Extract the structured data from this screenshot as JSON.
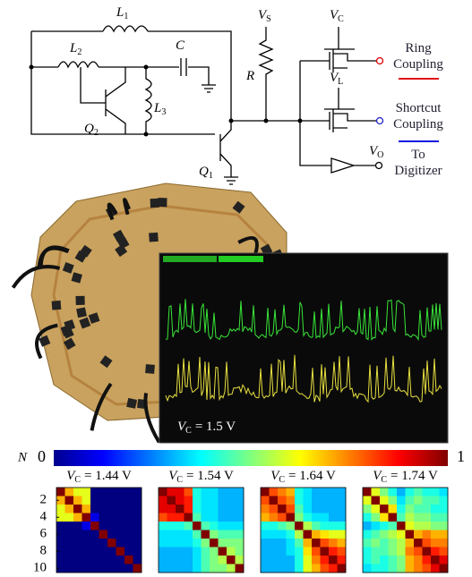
{
  "circuit": {
    "L1": {
      "symbol": "L",
      "subscript": "1"
    },
    "L2": {
      "symbol": "L",
      "subscript": "2"
    },
    "C": {
      "symbol": "C",
      "subscript": ""
    },
    "L3": {
      "symbol": "L",
      "subscript": "3"
    },
    "Q2": {
      "symbol": "Q",
      "subscript": "2"
    },
    "Q1": {
      "symbol": "Q",
      "subscript": "1"
    },
    "VS": {
      "symbol": "V",
      "subscript": "S"
    },
    "R": {
      "symbol": "R",
      "subscript": ""
    },
    "VC": {
      "symbol": "V",
      "subscript": "C"
    },
    "VL": {
      "symbol": "V",
      "subscript": "L"
    },
    "VO": {
      "symbol": "V",
      "subscript": "O"
    },
    "ring": [
      "Ring",
      "Coupling"
    ],
    "shortcut": [
      "Shortcut",
      "Coupling"
    ],
    "digitizer": [
      "To",
      "Digitizer"
    ]
  },
  "oscilloscope": {
    "label": {
      "symbol": "V",
      "subscript": "C",
      "rest": "= 1.5 V"
    }
  },
  "colorbar": {
    "label": "N",
    "ticks": [
      0,
      1
    ]
  },
  "heatmap_axis": {
    "yticks": [
      2,
      4,
      6,
      8,
      10
    ]
  },
  "heatmaps": [
    {
      "title": {
        "symbol": "V",
        "subscript": "C",
        "rest": "= 1.44 V"
      },
      "values": [
        [
          1,
          0.7,
          0.6,
          0.6,
          0,
          0,
          0,
          0,
          0,
          0
        ],
        [
          0.7,
          1,
          0.7,
          0.6,
          0,
          0,
          0,
          0,
          0,
          0
        ],
        [
          0.6,
          0.7,
          1,
          0.7,
          0,
          0,
          0,
          0,
          0,
          0
        ],
        [
          0.6,
          0.6,
          0.7,
          1,
          0.1,
          0,
          0,
          0,
          0,
          0
        ],
        [
          0,
          0,
          0,
          0.1,
          1,
          0,
          0,
          0,
          0,
          0
        ],
        [
          0,
          0,
          0,
          0,
          0,
          1,
          0,
          0,
          0,
          0
        ],
        [
          0,
          0,
          0,
          0,
          0,
          0,
          1,
          0,
          0,
          0
        ],
        [
          0,
          0,
          0,
          0,
          0,
          0,
          0,
          1,
          0,
          0
        ],
        [
          0,
          0,
          0,
          0,
          0,
          0,
          0,
          0,
          1,
          0
        ],
        [
          0,
          0,
          0,
          0,
          0,
          0,
          0,
          0,
          0,
          1
        ]
      ]
    },
    {
      "title": {
        "symbol": "V",
        "subscript": "C",
        "rest": "= 1.54 V"
      },
      "values": [
        [
          1,
          0.9,
          0.9,
          0.8,
          0.4,
          0.35,
          0.35,
          0.3,
          0.3,
          0.3
        ],
        [
          0.9,
          1,
          0.9,
          0.85,
          0.4,
          0.35,
          0.35,
          0.3,
          0.3,
          0.3
        ],
        [
          0.9,
          0.9,
          1,
          0.85,
          0.4,
          0.35,
          0.35,
          0.3,
          0.3,
          0.3
        ],
        [
          0.8,
          0.85,
          0.85,
          1,
          0.45,
          0.35,
          0.35,
          0.3,
          0.3,
          0.3
        ],
        [
          0.4,
          0.4,
          0.4,
          0.45,
          1,
          0.45,
          0.4,
          0.35,
          0.35,
          0.35
        ],
        [
          0.35,
          0.35,
          0.35,
          0.35,
          0.45,
          1,
          0.5,
          0.45,
          0.45,
          0.45
        ],
        [
          0.35,
          0.35,
          0.35,
          0.35,
          0.4,
          0.5,
          1,
          0.5,
          0.5,
          0.5
        ],
        [
          0.3,
          0.3,
          0.3,
          0.3,
          0.35,
          0.45,
          0.5,
          1,
          0.55,
          0.5
        ],
        [
          0.3,
          0.3,
          0.3,
          0.3,
          0.35,
          0.45,
          0.5,
          0.55,
          1,
          0.55
        ],
        [
          0.3,
          0.3,
          0.3,
          0.3,
          0.35,
          0.45,
          0.5,
          0.5,
          0.55,
          1
        ]
      ]
    },
    {
      "title": {
        "symbol": "V",
        "subscript": "C",
        "rest": "= 1.64 V"
      },
      "values": [
        [
          1,
          0.8,
          0.75,
          0.7,
          0.4,
          0.35,
          0.3,
          0.3,
          0.3,
          0.3
        ],
        [
          0.8,
          1,
          0.8,
          0.75,
          0.4,
          0.35,
          0.3,
          0.3,
          0.3,
          0.3
        ],
        [
          0.75,
          0.8,
          1,
          0.8,
          0.45,
          0.35,
          0.3,
          0.3,
          0.3,
          0.3
        ],
        [
          0.7,
          0.75,
          0.8,
          1,
          0.5,
          0.4,
          0.35,
          0.35,
          0.3,
          0.3
        ],
        [
          0.4,
          0.4,
          0.45,
          0.5,
          1,
          0.55,
          0.45,
          0.4,
          0.4,
          0.4
        ],
        [
          0.35,
          0.35,
          0.35,
          0.4,
          0.55,
          1,
          0.7,
          0.65,
          0.6,
          0.6
        ],
        [
          0.3,
          0.3,
          0.3,
          0.35,
          0.45,
          0.7,
          1,
          0.8,
          0.75,
          0.7
        ],
        [
          0.3,
          0.3,
          0.3,
          0.35,
          0.4,
          0.65,
          0.8,
          1,
          0.85,
          0.8
        ],
        [
          0.3,
          0.3,
          0.3,
          0.3,
          0.4,
          0.6,
          0.75,
          0.85,
          1,
          0.85
        ],
        [
          0.3,
          0.3,
          0.3,
          0.3,
          0.4,
          0.6,
          0.7,
          0.8,
          0.85,
          1
        ]
      ]
    },
    {
      "title": {
        "symbol": "V",
        "subscript": "C",
        "rest": "= 1.74 V"
      },
      "values": [
        [
          1,
          0.6,
          0.5,
          0.4,
          0.3,
          0.4,
          0.45,
          0.4,
          0.4,
          0.35
        ],
        [
          0.6,
          1,
          0.6,
          0.5,
          0.35,
          0.45,
          0.5,
          0.45,
          0.45,
          0.4
        ],
        [
          0.5,
          0.6,
          1,
          0.65,
          0.4,
          0.5,
          0.45,
          0.45,
          0.4,
          0.4
        ],
        [
          0.4,
          0.5,
          0.65,
          1,
          0.45,
          0.55,
          0.5,
          0.5,
          0.45,
          0.45
        ],
        [
          0.3,
          0.35,
          0.4,
          0.45,
          1,
          0.6,
          0.55,
          0.55,
          0.5,
          0.5
        ],
        [
          0.4,
          0.45,
          0.5,
          0.55,
          0.6,
          1,
          0.7,
          0.75,
          0.7,
          0.7
        ],
        [
          0.45,
          0.5,
          0.45,
          0.5,
          0.55,
          0.7,
          1,
          0.8,
          0.75,
          0.75
        ],
        [
          0.4,
          0.45,
          0.45,
          0.5,
          0.55,
          0.75,
          0.8,
          1,
          0.85,
          0.8
        ],
        [
          0.4,
          0.45,
          0.4,
          0.45,
          0.5,
          0.7,
          0.75,
          0.85,
          1,
          0.9
        ],
        [
          0.35,
          0.4,
          0.4,
          0.45,
          0.5,
          0.7,
          0.75,
          0.8,
          0.9,
          1
        ]
      ]
    }
  ]
}
